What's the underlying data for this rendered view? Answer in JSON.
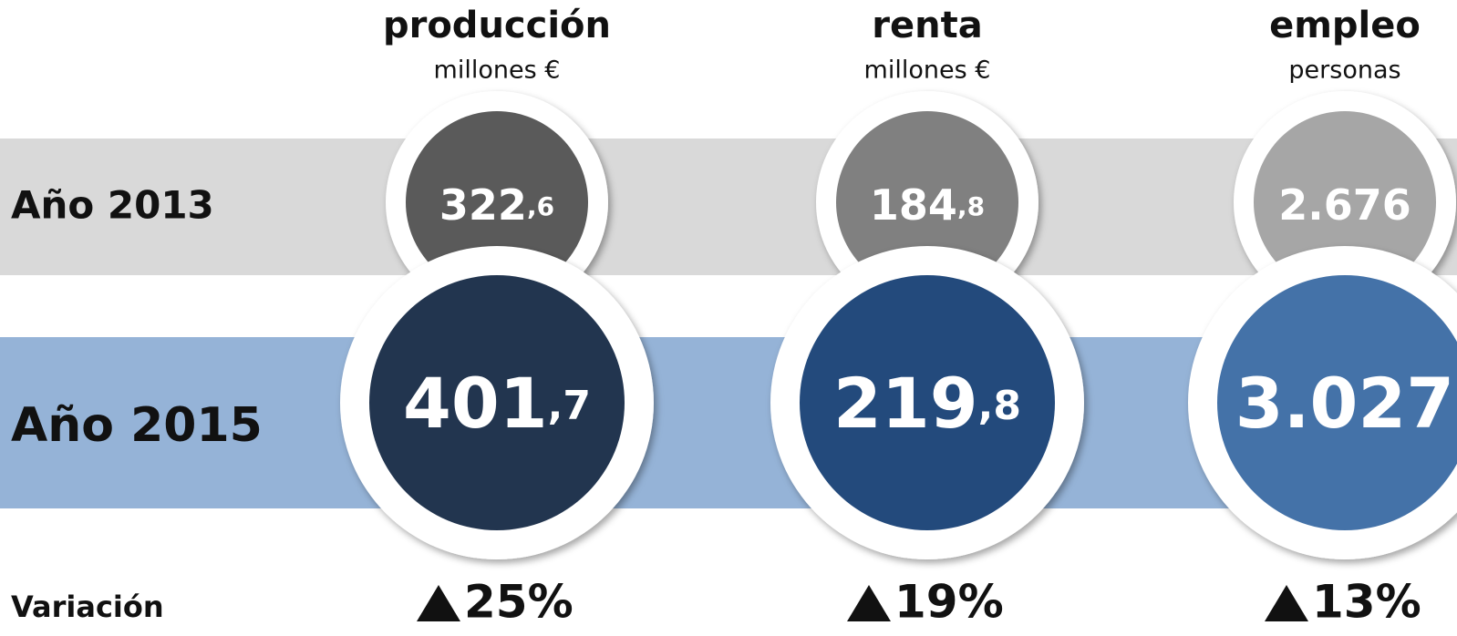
{
  "rows": {
    "first": "Año 2013",
    "second": "Año 2015",
    "variation": "Variación"
  },
  "columns": [
    {
      "title": "producción",
      "unit": "millones €",
      "first": {
        "int": "322",
        "dec": ",6"
      },
      "second": {
        "int": "401",
        "dec": ",7"
      },
      "variation": "25%"
    },
    {
      "title": "renta",
      "unit": "millones €",
      "first": {
        "int": "184",
        "dec": ",8"
      },
      "second": {
        "int": "219",
        "dec": ",8"
      },
      "variation": "19%"
    },
    {
      "title": "empleo",
      "unit": "personas",
      "first": {
        "int": "2.676"
      },
      "second": {
        "int": "3.027"
      },
      "variation": "13%"
    }
  ]
}
